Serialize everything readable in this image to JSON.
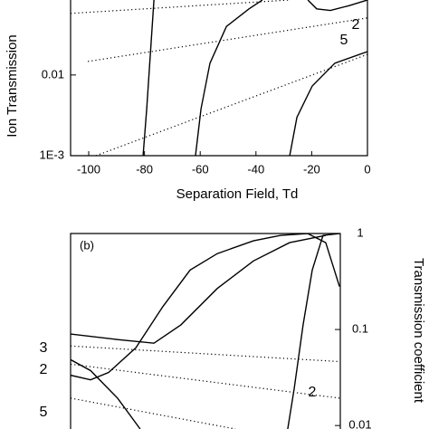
{
  "chart_data": [
    {
      "type": "line",
      "panel": "a",
      "xlabel": "Separation Field, Td",
      "ylabel": "Ion Transmission",
      "log_y": true,
      "y_axis_side": "left",
      "xlim": [
        -106.5,
        0
      ],
      "ylim": [
        0.001,
        0.085
      ],
      "xticks": [
        -100,
        -80,
        -60,
        -40,
        -20,
        0
      ],
      "yticks": [
        0.01,
        {
          "value": 0.001,
          "label": "1E-3"
        }
      ],
      "series": [
        {
          "style": "solid",
          "color": "#000000",
          "x": [
            -80.5,
            -79.2,
            -77.9,
            -76.6
          ],
          "values": [
            0.001,
            0.0038,
            0.018,
            0.085
          ]
        },
        {
          "style": "solid",
          "color": "#000000",
          "x": [
            -61.7,
            -59.7,
            -56.5,
            -50.6,
            -42.5,
            -37.7
          ],
          "values": [
            0.001,
            0.0038,
            0.014,
            0.04,
            0.066,
            0.085
          ]
        },
        {
          "style": "solid",
          "color": "#000000",
          "x": [
            -27.9,
            -25.3,
            -19.8,
            -11.7,
            0
          ],
          "values": [
            0.001,
            0.003,
            0.0073,
            0.014,
            0.0195
          ]
        },
        {
          "style": "solid",
          "color": "#000000",
          "x": [
            -21.4,
            -18.2,
            -13.3,
            -6.8,
            0
          ],
          "values": [
            0.085,
            0.066,
            0.063,
            0.072,
            0.085
          ]
        },
        {
          "style": "dotted",
          "color": "#000000",
          "x": [
            -106.5,
            -27.9
          ],
          "values": [
            0.058,
            0.085
          ]
        },
        {
          "style": "dotted",
          "color": "#000000",
          "x": [
            -100.3,
            0
          ],
          "values": [
            0.0147,
            0.051
          ]
        },
        {
          "style": "dotted",
          "color": "#000000",
          "x": [
            -97.4,
            0
          ],
          "values": [
            0.001,
            0.018
          ]
        }
      ],
      "annotations": [
        "2",
        "5"
      ]
    },
    {
      "type": "line",
      "panel": "b",
      "panel_label": "(b)",
      "ylabel": "Transmission coefficient",
      "log_y": true,
      "y_axis_side": "right",
      "xlim": [
        0,
        100
      ],
      "ylim": [
        0.0092,
        1
      ],
      "yticks": [
        1,
        0.1,
        0.01
      ],
      "series": [
        {
          "style": "solid",
          "color": "#000000",
          "x": [
            0,
            17.4,
            30.9,
            40.9,
            54.4,
            67.8,
            81.2,
            94.6
          ],
          "values": [
            0.0896,
            0.0785,
            0.072,
            0.112,
            0.268,
            0.518,
            0.803,
            0.956
          ]
        },
        {
          "style": "solid",
          "color": "#000000",
          "x": [
            0,
            7.4,
            14.1,
            24.2,
            34.2,
            44.3,
            54.4,
            67.8,
            77.9,
            87.9,
            94.6,
            99.7
          ],
          "values": [
            0.0334,
            0.0299,
            0.0357,
            0.0645,
            0.173,
            0.416,
            0.617,
            0.839,
            0.956,
            1,
            0.803,
            0.28
          ]
        },
        {
          "style": "solid",
          "color": "#000000",
          "x": [
            0,
            7.4,
            17.4,
            25.8
          ],
          "values": [
            0.0485,
            0.0373,
            0.0193,
            0.0092
          ]
        },
        {
          "style": "solid",
          "color": "#000000",
          "x": [
            80.5,
            82.9,
            86.2,
            89.6,
            93.6,
            99.7
          ],
          "values": [
            0.0092,
            0.024,
            0.112,
            0.416,
            0.956,
            1
          ]
        },
        {
          "style": "dotted",
          "color": "#000000",
          "x": [
            0,
            99.7
          ],
          "values": [
            0.0674,
            0.0464
          ]
        },
        {
          "style": "dotted",
          "color": "#000000",
          "x": [
            0,
            99.7
          ],
          "values": [
            0.0435,
            0.0193
          ]
        },
        {
          "style": "dotted",
          "color": "#000000",
          "x": [
            0,
            61.1
          ],
          "values": [
            0.0193,
            0.0092
          ]
        }
      ],
      "annotations": [
        "3",
        "2",
        "5",
        "2"
      ]
    }
  ]
}
